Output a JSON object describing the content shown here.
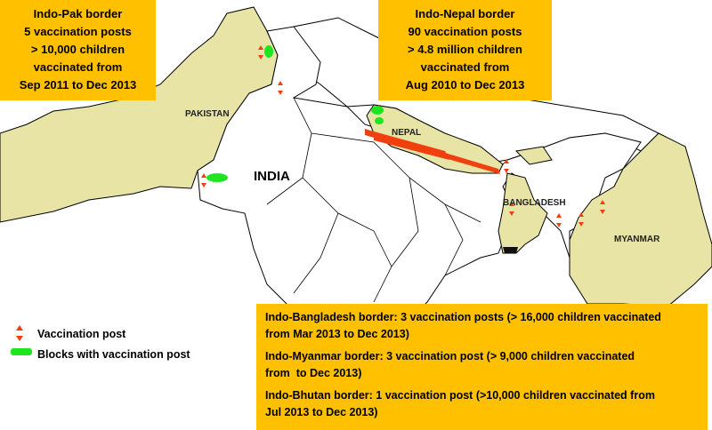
{
  "pak_box": {
    "lines": [
      "Indo-Pak border",
      "5 vaccination posts",
      "> 10,000 children",
      "vaccinated from",
      "Sep 2011 to Dec 2013"
    ]
  },
  "nepal_box": {
    "lines": [
      "Indo-Nepal border",
      "90 vaccination posts",
      "> 4.8 million children",
      "vaccinated from",
      "Aug 2010 to Dec 2013"
    ]
  },
  "map_labels": {
    "pakistan": "PAKISTAN",
    "india": "INDIA",
    "nepal": "NEPAL",
    "bangladesh": "BANGLADESH",
    "myanmar": "MYANMAR"
  },
  "legend": {
    "items": [
      "Vaccination post",
      "Blocks with vaccination post"
    ]
  },
  "east_box": {
    "entries": [
      [
        "Indo-Bangladesh border: 3 vaccination posts (> 16,000 children vaccinated",
        "from Mar 2013 to Dec 2013)"
      ],
      [
        "Indo-Myanmar border: 3 vaccination post (> 9,000 children vaccinated",
        "from  to Dec 2013)"
      ],
      [
        "Indo-Bhutan border: 1 vaccination post (>10,000 children vaccinated from",
        "Jul 2013 to Dec 2013)"
      ]
    ]
  }
}
